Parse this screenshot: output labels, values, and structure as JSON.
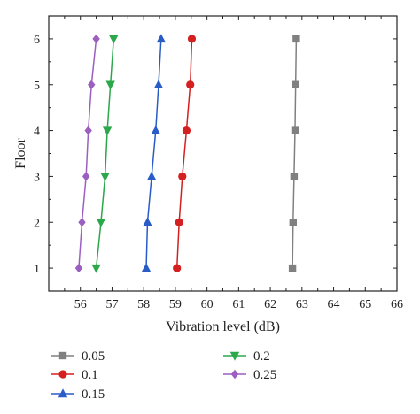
{
  "chart_data": {
    "type": "line",
    "xlabel": "Vibration level (dB)",
    "ylabel": "Floor",
    "xlim": [
      55,
      66
    ],
    "ylim": [
      0.5,
      6.5
    ],
    "x_ticks": [
      56,
      57,
      58,
      59,
      60,
      61,
      62,
      63,
      64,
      65,
      66
    ],
    "y_ticks": [
      1,
      2,
      3,
      4,
      5,
      6
    ],
    "grid": false,
    "legend_position": "bottom",
    "series": [
      {
        "name": "0.05",
        "color": "#808080",
        "marker": "square",
        "points": [
          [
            62.7,
            1
          ],
          [
            62.72,
            2
          ],
          [
            62.75,
            3
          ],
          [
            62.78,
            4
          ],
          [
            62.8,
            5
          ],
          [
            62.82,
            6
          ]
        ]
      },
      {
        "name": "0.1",
        "color": "#d42020",
        "marker": "circle",
        "points": [
          [
            59.05,
            1
          ],
          [
            59.12,
            2
          ],
          [
            59.22,
            3
          ],
          [
            59.35,
            4
          ],
          [
            59.47,
            5
          ],
          [
            59.52,
            6
          ]
        ]
      },
      {
        "name": "0.15",
        "color": "#2a5cc8",
        "marker": "triangle-up",
        "points": [
          [
            58.08,
            1
          ],
          [
            58.12,
            2
          ],
          [
            58.25,
            3
          ],
          [
            58.38,
            4
          ],
          [
            58.47,
            5
          ],
          [
            58.55,
            6
          ]
        ]
      },
      {
        "name": "0.2",
        "color": "#2aa84a",
        "marker": "triangle-down",
        "points": [
          [
            56.5,
            1
          ],
          [
            56.65,
            2
          ],
          [
            56.78,
            3
          ],
          [
            56.85,
            4
          ],
          [
            56.95,
            5
          ],
          [
            57.05,
            6
          ]
        ]
      },
      {
        "name": "0.25",
        "color": "#9b5fc0",
        "marker": "diamond",
        "points": [
          [
            55.95,
            1
          ],
          [
            56.05,
            2
          ],
          [
            56.18,
            3
          ],
          [
            56.25,
            4
          ],
          [
            56.35,
            5
          ],
          [
            56.5,
            6
          ]
        ]
      }
    ]
  }
}
